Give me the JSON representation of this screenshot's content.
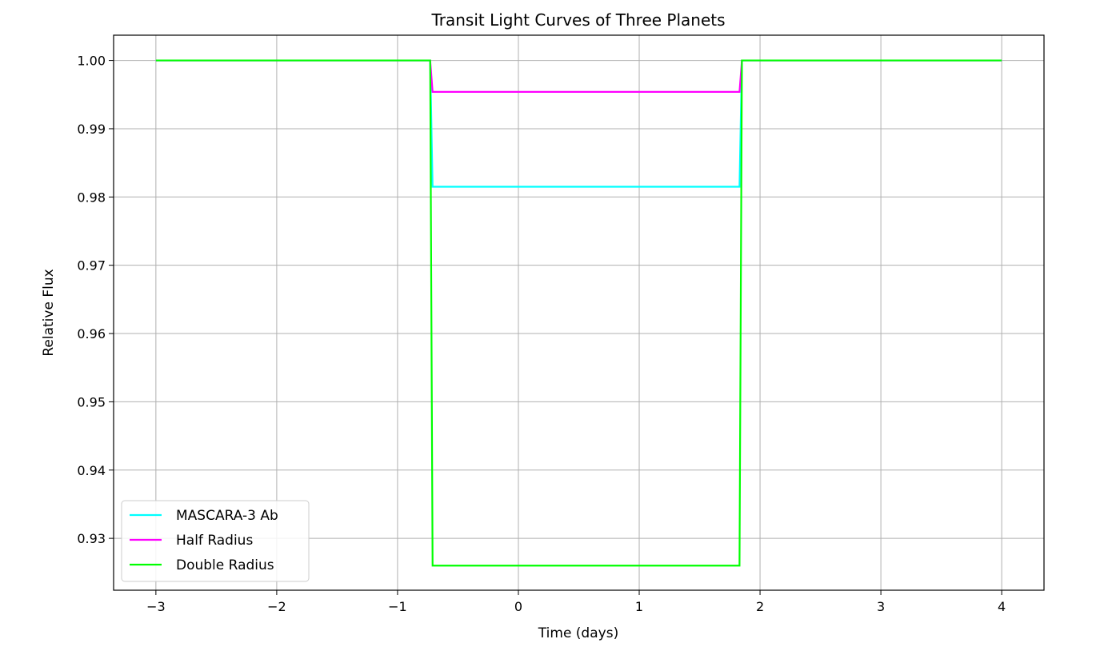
{
  "chart_data": {
    "type": "line",
    "title": "Transit Light Curves of Three Planets",
    "xlabel": "Time (days)",
    "ylabel": "Relative Flux",
    "xlim": [
      -3.35,
      4.35
    ],
    "ylim": [
      0.9224,
      1.0037
    ],
    "xticks": [
      -3,
      -2,
      -1,
      0,
      1,
      2,
      3,
      4
    ],
    "xtick_labels": [
      "−3",
      "−2",
      "−1",
      "0",
      "1",
      "2",
      "3",
      "4"
    ],
    "yticks": [
      0.93,
      0.94,
      0.95,
      0.96,
      0.97,
      0.98,
      0.99,
      1.0
    ],
    "ytick_labels": [
      "0.93",
      "0.94",
      "0.95",
      "0.96",
      "0.97",
      "0.98",
      "0.99",
      "1.00"
    ],
    "grid": true,
    "legend_position": "lower-left",
    "series": [
      {
        "name": "MASCARA-3 Ab",
        "color": "#00ffff",
        "x": [
          -3,
          -0.73,
          -0.71,
          1.83,
          1.85,
          4
        ],
        "y": [
          1.0,
          1.0,
          0.9815,
          0.9815,
          1.0,
          1.0
        ]
      },
      {
        "name": "Half Radius",
        "color": "#ff00ff",
        "x": [
          -3,
          -0.73,
          -0.71,
          1.83,
          1.85,
          4
        ],
        "y": [
          1.0,
          1.0,
          0.9954,
          0.9954,
          1.0,
          1.0
        ]
      },
      {
        "name": "Double Radius",
        "color": "#00ff00",
        "x": [
          -3,
          -0.73,
          -0.71,
          1.83,
          1.85,
          4
        ],
        "y": [
          1.0,
          1.0,
          0.926,
          0.926,
          1.0,
          1.0
        ]
      }
    ]
  }
}
